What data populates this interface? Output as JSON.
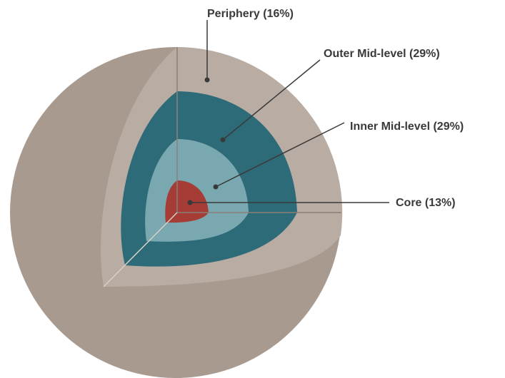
{
  "layers": [
    {
      "label": "Periphery (16%)"
    },
    {
      "label": "Outer Mid-level (29%)"
    },
    {
      "label": "Inner Mid-level (29%)"
    },
    {
      "label": "Core (13%)"
    }
  ]
}
